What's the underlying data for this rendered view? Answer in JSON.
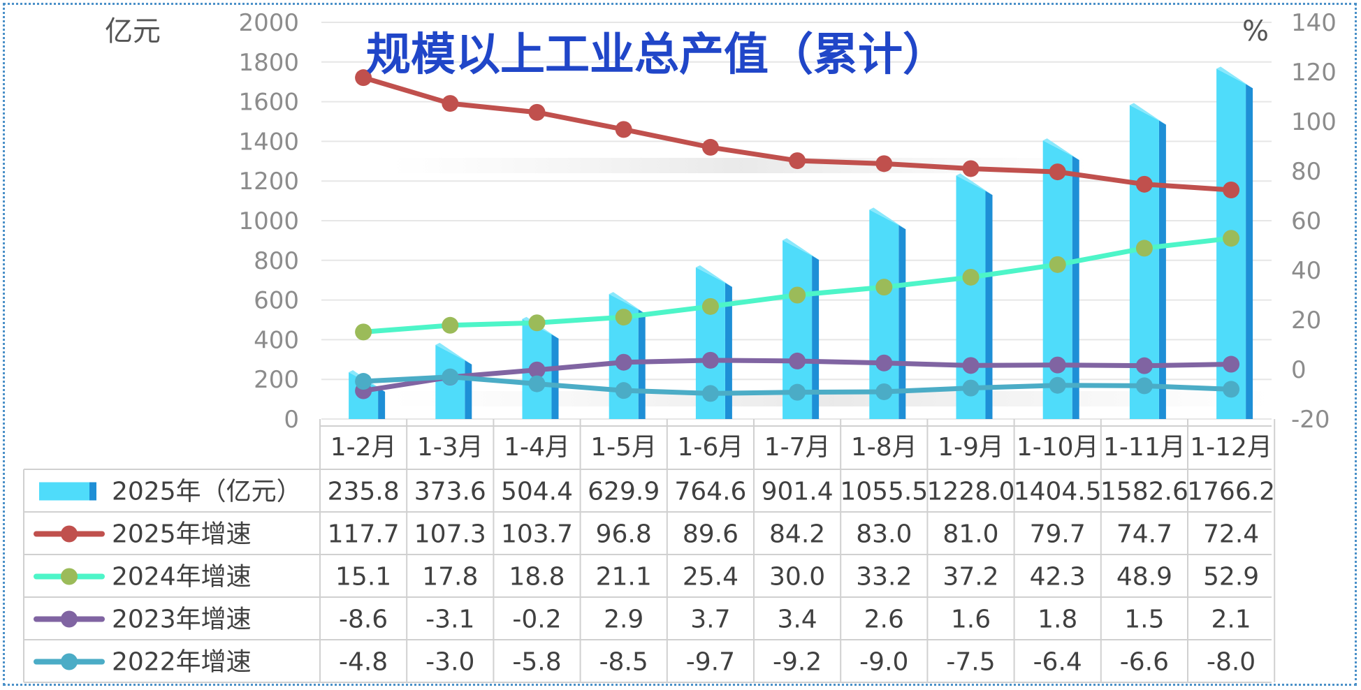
{
  "chart_data": {
    "type": "bar+line",
    "title": "规模以上工业总产值（累计）",
    "y_left_unit": "亿元",
    "y_right_unit": "%",
    "y_left_range": [
      0,
      2000
    ],
    "y_left_ticks": [
      "0",
      "200",
      "400",
      "600",
      "800",
      "1000",
      "1200",
      "1400",
      "1600",
      "1800",
      "2000"
    ],
    "y_right_range": [
      -20,
      140
    ],
    "y_right_ticks": [
      "-20",
      "0",
      "20",
      "40",
      "60",
      "80",
      "100",
      "120",
      "140"
    ],
    "categories": [
      "1-2月",
      "1-3月",
      "1-4月",
      "1-5月",
      "1-6月",
      "1-7月",
      "1-8月",
      "1-9月",
      "1-10月",
      "1-11月",
      "1-12月"
    ],
    "bar_series": {
      "name": "2025年（亿元）",
      "color": "#4fdcfa",
      "values": [
        235.8,
        373.6,
        504.4,
        629.9,
        764.6,
        901.4,
        1055.5,
        1228.0,
        1404.5,
        1582.6,
        1766.2
      ],
      "labels": [
        "235.8",
        "373.6",
        "504.4",
        "629.9",
        "764.6",
        "901.4",
        "1055.5",
        "1228.0",
        "1404.5",
        "1582.6",
        "1766.2"
      ]
    },
    "line_series": [
      {
        "name": "2025年增速",
        "line_color": "#c0504d",
        "marker_color": "#c0504d",
        "values": [
          117.7,
          107.3,
          103.7,
          96.8,
          89.6,
          84.2,
          83.0,
          81.0,
          79.7,
          74.7,
          72.4
        ],
        "labels": [
          "117.7",
          "107.3",
          "103.7",
          "96.8",
          "89.6",
          "84.2",
          "83.0",
          "81.0",
          "79.7",
          "74.7",
          "72.4"
        ]
      },
      {
        "name": "2024年增速",
        "line_color": "#4df5c8",
        "marker_color": "#9bbb59",
        "values": [
          15.1,
          17.8,
          18.8,
          21.1,
          25.4,
          30.0,
          33.2,
          37.2,
          42.3,
          48.9,
          52.9
        ],
        "labels": [
          "15.1",
          "17.8",
          "18.8",
          "21.1",
          "25.4",
          "30.0",
          "33.2",
          "37.2",
          "42.3",
          "48.9",
          "52.9"
        ]
      },
      {
        "name": "2023年增速",
        "line_color": "#8064a2",
        "marker_color": "#8064a2",
        "values": [
          -8.6,
          -3.1,
          -0.2,
          2.9,
          3.7,
          3.4,
          2.6,
          1.6,
          1.8,
          1.5,
          2.1
        ],
        "labels": [
          "-8.6",
          "-3.1",
          "-0.2",
          "2.9",
          "3.7",
          "3.4",
          "2.6",
          "1.6",
          "1.8",
          "1.5",
          "2.1"
        ]
      },
      {
        "name": "2022年增速",
        "line_color": "#4bacc6",
        "marker_color": "#4bacc6",
        "values": [
          -4.8,
          -3.0,
          -5.8,
          -8.5,
          -9.7,
          -9.2,
          -9.0,
          -7.5,
          -6.4,
          -6.6,
          -8.0
        ],
        "labels": [
          "-4.8",
          "-3.0",
          "-5.8",
          "-8.5",
          "-9.7",
          "-9.2",
          "-9.0",
          "-7.5",
          "-6.4",
          "-6.6",
          "-8.0"
        ]
      }
    ],
    "grid": true,
    "legend": "data-table"
  }
}
